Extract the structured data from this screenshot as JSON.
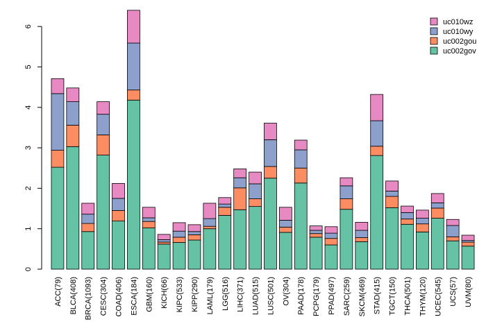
{
  "chart_data": {
    "type": "bar",
    "stacked": true,
    "title": "",
    "xlabel": "",
    "ylabel": "",
    "ylim": [
      0,
      6.5
    ],
    "yticks": [
      0,
      1,
      2,
      3,
      4,
      5,
      6
    ],
    "legend_position": "top-right",
    "categories": [
      "ACC(79)",
      "BLCA(408)",
      "BRCA(1093)",
      "CESC(304)",
      "COAD(406)",
      "ESCA(184)",
      "GBM(160)",
      "KICH(66)",
      "KIPC(533)",
      "KIPP(290)",
      "LAML(179)",
      "LGG(516)",
      "LIHC(371)",
      "LUAD(515)",
      "LUSC(501)",
      "OV(304)",
      "PAAD(178)",
      "PCPG(179)",
      "PPAD(497)",
      "SARC(259)",
      "SKCM(469)",
      "STAD(415)",
      "TGCT(150)",
      "THCA(501)",
      "THYM(120)",
      "UCEC(545)",
      "UCS(57)",
      "UVM(80)"
    ],
    "series": [
      {
        "name": "uc002gov",
        "color": "#66c2a5",
        "values": [
          2.52,
          3.03,
          0.93,
          2.82,
          1.19,
          4.18,
          1.02,
          0.62,
          0.66,
          0.72,
          1.0,
          1.33,
          1.47,
          1.55,
          2.25,
          0.91,
          2.13,
          0.79,
          0.6,
          1.48,
          0.68,
          2.81,
          1.52,
          1.11,
          0.92,
          1.26,
          0.7,
          0.57
        ]
      },
      {
        "name": "uc002gou",
        "color": "#fc8d62",
        "values": [
          0.42,
          0.53,
          0.2,
          0.5,
          0.26,
          0.25,
          0.16,
          0.05,
          0.13,
          0.13,
          0.06,
          0.2,
          0.54,
          0.19,
          0.29,
          0.13,
          0.37,
          0.09,
          0.16,
          0.26,
          0.1,
          0.23,
          0.28,
          0.13,
          0.2,
          0.25,
          0.1,
          0.1
        ]
      },
      {
        "name": "uc010wy",
        "color": "#8da0cb",
        "values": [
          1.4,
          0.58,
          0.23,
          0.51,
          0.3,
          1.16,
          0.09,
          0.06,
          0.15,
          0.08,
          0.19,
          0.08,
          0.25,
          0.37,
          0.66,
          0.17,
          0.45,
          0.08,
          0.13,
          0.32,
          0.18,
          0.63,
          0.13,
          0.16,
          0.14,
          0.13,
          0.28,
          0.04
        ]
      },
      {
        "name": "uc010wz",
        "color": "#e78ac3",
        "values": [
          0.37,
          0.34,
          0.27,
          0.31,
          0.37,
          0.81,
          0.26,
          0.13,
          0.21,
          0.17,
          0.38,
          0.16,
          0.22,
          0.29,
          0.41,
          0.32,
          0.24,
          0.11,
          0.16,
          0.2,
          0.2,
          0.65,
          0.25,
          0.16,
          0.2,
          0.23,
          0.15,
          0.13
        ]
      }
    ]
  }
}
